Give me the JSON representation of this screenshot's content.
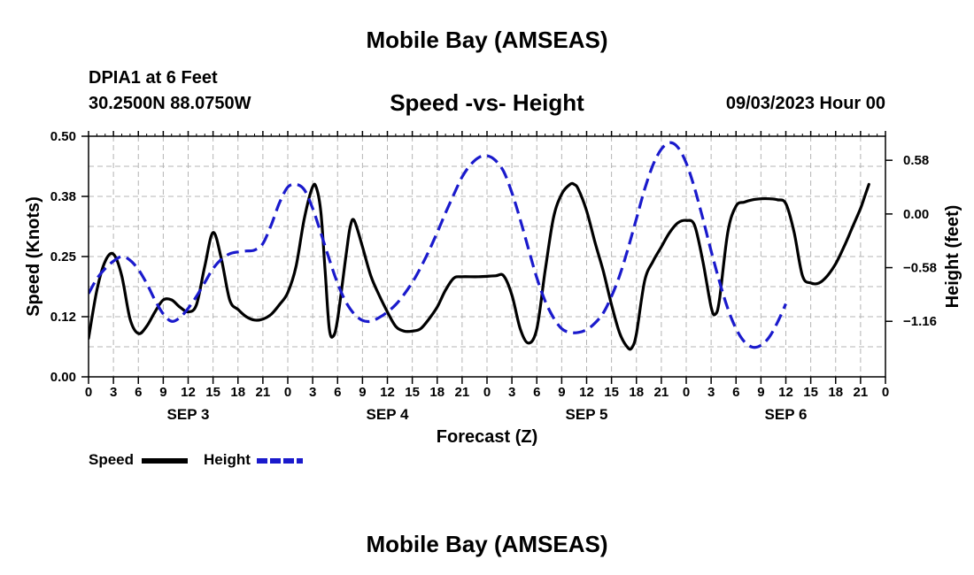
{
  "header": {
    "title": "Mobile Bay (AMSEAS)",
    "station": "DPIA1 at 6 Feet",
    "coords": "30.2500N  88.0750W",
    "subtitle": "Speed -vs- Height",
    "datetime": "09/03/2023 Hour 00"
  },
  "footer": {
    "title": "Mobile Bay (AMSEAS)"
  },
  "chart_data": {
    "type": "line",
    "title": "Speed -vs- Height",
    "xlabel": "Forecast (Z)",
    "ylabel": "Speed (Knots)",
    "y2label": "Height (feet)",
    "grid": true,
    "legend_position": "bottom-left",
    "xlim": [
      0,
      96
    ],
    "ylim": [
      0,
      0.5
    ],
    "y2lim": [
      -1.76,
      0.84
    ],
    "x_ticks": [
      0,
      3,
      6,
      9,
      12,
      15,
      18,
      21,
      24,
      27,
      30,
      33,
      36,
      39,
      42,
      45,
      48,
      51,
      54,
      57,
      60,
      63,
      66,
      69,
      72,
      75,
      78,
      81,
      84,
      87,
      90,
      93,
      96
    ],
    "x_tick_labels": [
      "0",
      "3",
      "6",
      "9",
      "12",
      "15",
      "18",
      "21",
      "0",
      "3",
      "6",
      "9",
      "12",
      "15",
      "18",
      "21",
      "0",
      "3",
      "6",
      "9",
      "12",
      "15",
      "18",
      "21",
      "0",
      "3",
      "6",
      "9",
      "12",
      "15",
      "18",
      "21",
      "0"
    ],
    "day_labels": [
      {
        "label": "SEP 3",
        "x": 12
      },
      {
        "label": "SEP 4",
        "x": 36
      },
      {
        "label": "SEP 5",
        "x": 60
      },
      {
        "label": "SEP 6",
        "x": 84
      }
    ],
    "y_ticks": [
      0,
      0.125,
      0.25,
      0.375,
      0.5
    ],
    "y_tick_labels": [
      "0.00",
      "0.12",
      "0.25",
      "0.38",
      "0.50"
    ],
    "y2_ticks": [
      -1.16,
      -0.58,
      0.0,
      0.58
    ],
    "y2_tick_labels": [
      "−1.16",
      "−0.58",
      "0.00",
      "0.58"
    ],
    "series": [
      {
        "name": "Speed",
        "axis": "left",
        "color": "#000000",
        "style": "solid",
        "points": [
          [
            0,
            0.08
          ],
          [
            1,
            0.18
          ],
          [
            2,
            0.24
          ],
          [
            3,
            0.255
          ],
          [
            4,
            0.21
          ],
          [
            5,
            0.12
          ],
          [
            6,
            0.09
          ],
          [
            7,
            0.105
          ],
          [
            8,
            0.135
          ],
          [
            9,
            0.16
          ],
          [
            10,
            0.16
          ],
          [
            11,
            0.145
          ],
          [
            12,
            0.135
          ],
          [
            13,
            0.15
          ],
          [
            14,
            0.23
          ],
          [
            15,
            0.3
          ],
          [
            16,
            0.245
          ],
          [
            17,
            0.16
          ],
          [
            18,
            0.14
          ],
          [
            19,
            0.125
          ],
          [
            20,
            0.118
          ],
          [
            21,
            0.12
          ],
          [
            22,
            0.13
          ],
          [
            23,
            0.15
          ],
          [
            24,
            0.175
          ],
          [
            25,
            0.23
          ],
          [
            26,
            0.33
          ],
          [
            27,
            0.395
          ],
          [
            27.5,
            0.39
          ],
          [
            28,
            0.34
          ],
          [
            28.5,
            0.22
          ],
          [
            29,
            0.1
          ],
          [
            29.5,
            0.085
          ],
          [
            30,
            0.12
          ],
          [
            31,
            0.25
          ],
          [
            31.5,
            0.31
          ],
          [
            32,
            0.325
          ],
          [
            33,
            0.27
          ],
          [
            34,
            0.21
          ],
          [
            35,
            0.17
          ],
          [
            36,
            0.135
          ],
          [
            37,
            0.105
          ],
          [
            38,
            0.095
          ],
          [
            39,
            0.095
          ],
          [
            40,
            0.1
          ],
          [
            41,
            0.12
          ],
          [
            42,
            0.145
          ],
          [
            43,
            0.18
          ],
          [
            44,
            0.205
          ],
          [
            45,
            0.208
          ],
          [
            47,
            0.208
          ],
          [
            49,
            0.21
          ],
          [
            50,
            0.21
          ],
          [
            51,
            0.17
          ],
          [
            52,
            0.1
          ],
          [
            53,
            0.07
          ],
          [
            54,
            0.1
          ],
          [
            55,
            0.22
          ],
          [
            56,
            0.33
          ],
          [
            57,
            0.38
          ],
          [
            58,
            0.4
          ],
          [
            58.5,
            0.4
          ],
          [
            59,
            0.39
          ],
          [
            60,
            0.345
          ],
          [
            61,
            0.28
          ],
          [
            62,
            0.22
          ],
          [
            63,
            0.15
          ],
          [
            64,
            0.09
          ],
          [
            65,
            0.06
          ],
          [
            65.5,
            0.062
          ],
          [
            66,
            0.09
          ],
          [
            67,
            0.2
          ],
          [
            68,
            0.24
          ],
          [
            69,
            0.27
          ],
          [
            70,
            0.3
          ],
          [
            71,
            0.32
          ],
          [
            72,
            0.325
          ],
          [
            73,
            0.315
          ],
          [
            74,
            0.24
          ],
          [
            75,
            0.145
          ],
          [
            75.5,
            0.13
          ],
          [
            76,
            0.16
          ],
          [
            77,
            0.3
          ],
          [
            78,
            0.355
          ],
          [
            79,
            0.363
          ],
          [
            80,
            0.368
          ],
          [
            81,
            0.37
          ],
          [
            82,
            0.37
          ],
          [
            83,
            0.368
          ],
          [
            84,
            0.36
          ],
          [
            85,
            0.3
          ],
          [
            86,
            0.21
          ],
          [
            87,
            0.195
          ],
          [
            88,
            0.195
          ],
          [
            89,
            0.21
          ],
          [
            90,
            0.235
          ],
          [
            91,
            0.27
          ],
          [
            92,
            0.31
          ],
          [
            93,
            0.35
          ],
          [
            93.5,
            0.375
          ],
          [
            94,
            0.4
          ]
        ]
      },
      {
        "name": "Height",
        "axis": "right",
        "color": "#1a1acc",
        "style": "dashed",
        "points": [
          [
            0,
            -0.86
          ],
          [
            1,
            -0.7
          ],
          [
            2,
            -0.59
          ],
          [
            3,
            -0.51
          ],
          [
            4,
            -0.46
          ],
          [
            5,
            -0.5
          ],
          [
            6,
            -0.6
          ],
          [
            7,
            -0.75
          ],
          [
            8,
            -0.93
          ],
          [
            9,
            -1.08
          ],
          [
            10,
            -1.16
          ],
          [
            11,
            -1.12
          ],
          [
            12,
            -1.02
          ],
          [
            13,
            -0.89
          ],
          [
            14,
            -0.74
          ],
          [
            15,
            -0.59
          ],
          [
            16,
            -0.49
          ],
          [
            17,
            -0.43
          ],
          [
            18,
            -0.41
          ],
          [
            19,
            -0.4
          ],
          [
            20,
            -0.39
          ],
          [
            21,
            -0.32
          ],
          [
            22,
            -0.12
          ],
          [
            23,
            0.12
          ],
          [
            24,
            0.29
          ],
          [
            25,
            0.32
          ],
          [
            26,
            0.26
          ],
          [
            27,
            0.06
          ],
          [
            28,
            -0.21
          ],
          [
            29,
            -0.49
          ],
          [
            30,
            -0.75
          ],
          [
            31,
            -0.95
          ],
          [
            32,
            -1.08
          ],
          [
            33,
            -1.15
          ],
          [
            34,
            -1.16
          ],
          [
            35,
            -1.12
          ],
          [
            36,
            -1.06
          ],
          [
            37,
            -0.98
          ],
          [
            38,
            -0.87
          ],
          [
            39,
            -0.74
          ],
          [
            40,
            -0.58
          ],
          [
            41,
            -0.4
          ],
          [
            42,
            -0.2
          ],
          [
            43,
            0.01
          ],
          [
            44,
            0.21
          ],
          [
            45,
            0.4
          ],
          [
            46,
            0.53
          ],
          [
            47,
            0.61
          ],
          [
            48,
            0.63
          ],
          [
            49,
            0.58
          ],
          [
            50,
            0.46
          ],
          [
            51,
            0.23
          ],
          [
            52,
            -0.06
          ],
          [
            53,
            -0.38
          ],
          [
            54,
            -0.69
          ],
          [
            55,
            -0.94
          ],
          [
            56,
            -1.12
          ],
          [
            57,
            -1.24
          ],
          [
            58,
            -1.28
          ],
          [
            59,
            -1.28
          ],
          [
            60,
            -1.25
          ],
          [
            61,
            -1.18
          ],
          [
            62,
            -1.07
          ],
          [
            63,
            -0.89
          ],
          [
            64,
            -0.66
          ],
          [
            65,
            -0.37
          ],
          [
            66,
            -0.05
          ],
          [
            67,
            0.27
          ],
          [
            68,
            0.53
          ],
          [
            69,
            0.7
          ],
          [
            70,
            0.77
          ],
          [
            71,
            0.72
          ],
          [
            72,
            0.55
          ],
          [
            73,
            0.28
          ],
          [
            74,
            -0.05
          ],
          [
            75,
            -0.4
          ],
          [
            76,
            -0.73
          ],
          [
            77,
            -1.02
          ],
          [
            78,
            -1.24
          ],
          [
            79,
            -1.38
          ],
          [
            80,
            -1.44
          ],
          [
            81,
            -1.42
          ],
          [
            82,
            -1.33
          ],
          [
            83,
            -1.17
          ],
          [
            84,
            -0.97
          ]
        ]
      }
    ]
  }
}
